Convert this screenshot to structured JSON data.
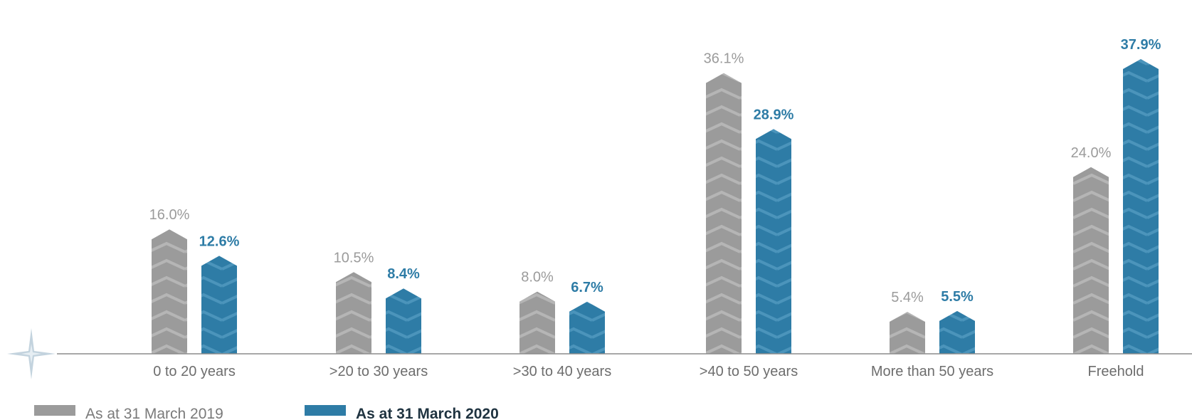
{
  "chart_data": {
    "type": "bar",
    "title": "",
    "xlabel": "",
    "ylabel": "",
    "ylim": [
      0,
      40
    ],
    "grid": false,
    "legend_position": "bottom-left",
    "categories": [
      "0 to 20 years",
      ">20 to 30 years",
      ">30 to 40 years",
      ">40 to 50 years",
      "More than 50 years",
      "Freehold"
    ],
    "series": [
      {
        "name": "As at 31 March 2019",
        "values": [
          16.0,
          10.5,
          8.0,
          36.1,
          5.4,
          24.0
        ],
        "labels": [
          "16.0%",
          "10.5%",
          "8.0%",
          "36.1%",
          "5.4%",
          "24.0%"
        ],
        "color": "#9b9b9b"
      },
      {
        "name": "As at 31 March 2020",
        "values": [
          12.6,
          8.4,
          6.7,
          28.9,
          5.5,
          37.9
        ],
        "labels": [
          "12.6%",
          "8.4%",
          "6.7%",
          "28.9%",
          "5.5%",
          "37.9%"
        ],
        "color": "#2e7ca6"
      }
    ]
  },
  "colors": {
    "series_2019": "#9b9b9b",
    "series_2020": "#2e7ca6",
    "axis": "#8c8c8c",
    "star": "#c3d3de"
  },
  "icons": {
    "decoration": "sparkle-star-icon"
  }
}
